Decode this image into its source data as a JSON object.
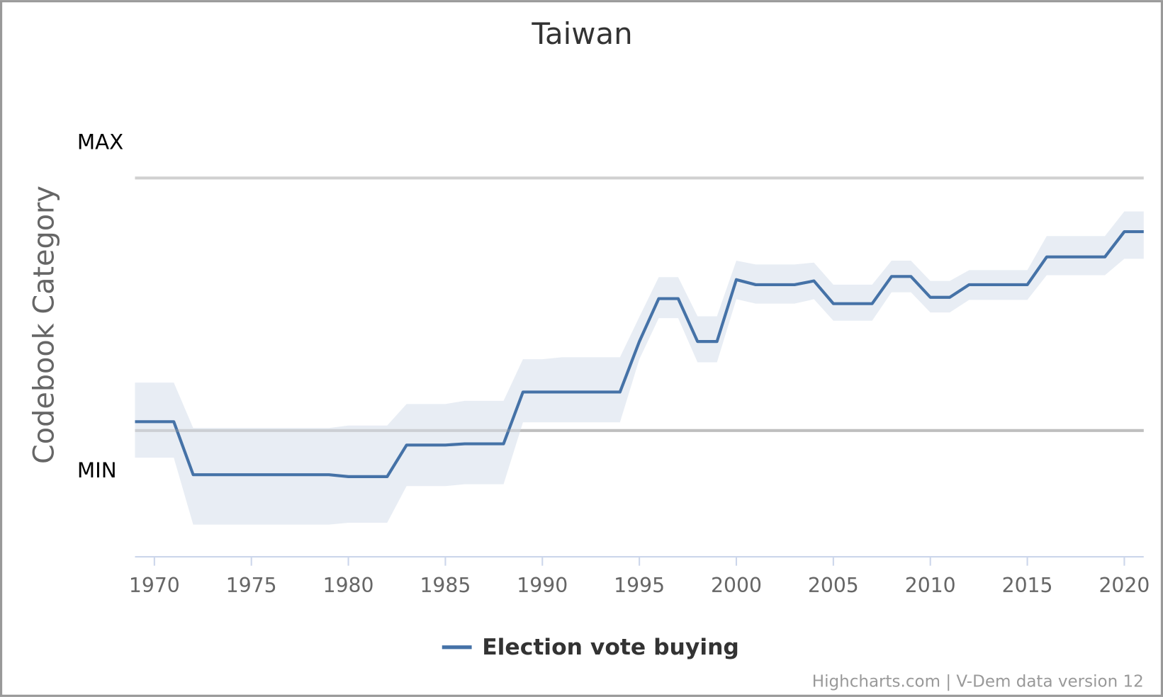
{
  "chart_data": {
    "type": "line",
    "title": "Taiwan",
    "y_axis_label": "Codebook Category",
    "credits": "Highcharts.com | V-Dem data version 12",
    "x": [
      1969,
      1970,
      1971,
      1972,
      1973,
      1974,
      1975,
      1976,
      1977,
      1978,
      1979,
      1980,
      1981,
      1982,
      1983,
      1984,
      1985,
      1986,
      1987,
      1988,
      1989,
      1990,
      1991,
      1992,
      1993,
      1994,
      1995,
      1996,
      1997,
      1998,
      1999,
      2000,
      2001,
      2002,
      2003,
      2004,
      2005,
      2006,
      2007,
      2008,
      2009,
      2010,
      2011,
      2012,
      2013,
      2014,
      2015,
      2016,
      2017,
      2018,
      2019,
      2020,
      2021
    ],
    "series": [
      {
        "name": "Election vote buying",
        "color": "#4572a7",
        "band_color": "#e6ebf3",
        "values": [
          0.14,
          0.14,
          0.14,
          -0.7,
          -0.7,
          -0.7,
          -0.7,
          -0.7,
          -0.7,
          -0.7,
          -0.7,
          -0.73,
          -0.73,
          -0.73,
          -0.23,
          -0.23,
          -0.23,
          -0.21,
          -0.21,
          -0.21,
          0.61,
          0.61,
          0.61,
          0.61,
          0.61,
          0.61,
          1.41,
          2.09,
          2.09,
          1.41,
          1.41,
          2.39,
          2.31,
          2.31,
          2.31,
          2.37,
          2.01,
          2.01,
          2.01,
          2.44,
          2.44,
          2.11,
          2.11,
          2.31,
          2.31,
          2.31,
          2.31,
          2.75,
          2.75,
          2.75,
          2.75,
          3.15,
          3.15
        ],
        "high": [
          0.76,
          0.76,
          0.76,
          0.04,
          0.04,
          0.04,
          0.04,
          0.04,
          0.04,
          0.04,
          0.04,
          0.08,
          0.08,
          0.08,
          0.42,
          0.42,
          0.42,
          0.47,
          0.47,
          0.47,
          1.13,
          1.13,
          1.16,
          1.16,
          1.16,
          1.16,
          1.8,
          2.43,
          2.43,
          1.81,
          1.81,
          2.69,
          2.63,
          2.63,
          2.63,
          2.66,
          2.31,
          2.31,
          2.31,
          2.69,
          2.69,
          2.37,
          2.37,
          2.54,
          2.54,
          2.54,
          2.54,
          3.08,
          3.08,
          3.08,
          3.08,
          3.47,
          3.47
        ],
        "low": [
          -0.43,
          -0.43,
          -0.43,
          -1.49,
          -1.49,
          -1.49,
          -1.49,
          -1.49,
          -1.49,
          -1.49,
          -1.49,
          -1.46,
          -1.46,
          -1.46,
          -0.88,
          -0.88,
          -0.88,
          -0.85,
          -0.85,
          -0.85,
          0.13,
          0.13,
          0.13,
          0.13,
          0.13,
          0.13,
          1.13,
          1.78,
          1.78,
          1.08,
          1.08,
          2.08,
          2.01,
          2.01,
          2.01,
          2.08,
          1.74,
          1.74,
          1.74,
          2.19,
          2.19,
          1.87,
          1.87,
          2.07,
          2.07,
          2.07,
          2.07,
          2.46,
          2.46,
          2.46,
          2.46,
          2.72,
          2.72
        ]
      }
    ],
    "xlim": [
      1969,
      2021
    ],
    "xticks": [
      1970,
      1975,
      1980,
      1985,
      1990,
      1995,
      2000,
      2005,
      2010,
      2015,
      2020
    ],
    "ylim": [
      -2,
      4
    ],
    "yticks": [
      {
        "value": 0,
        "label": "MIN"
      },
      {
        "value": 4,
        "label": "MAX"
      }
    ],
    "grid": true
  }
}
